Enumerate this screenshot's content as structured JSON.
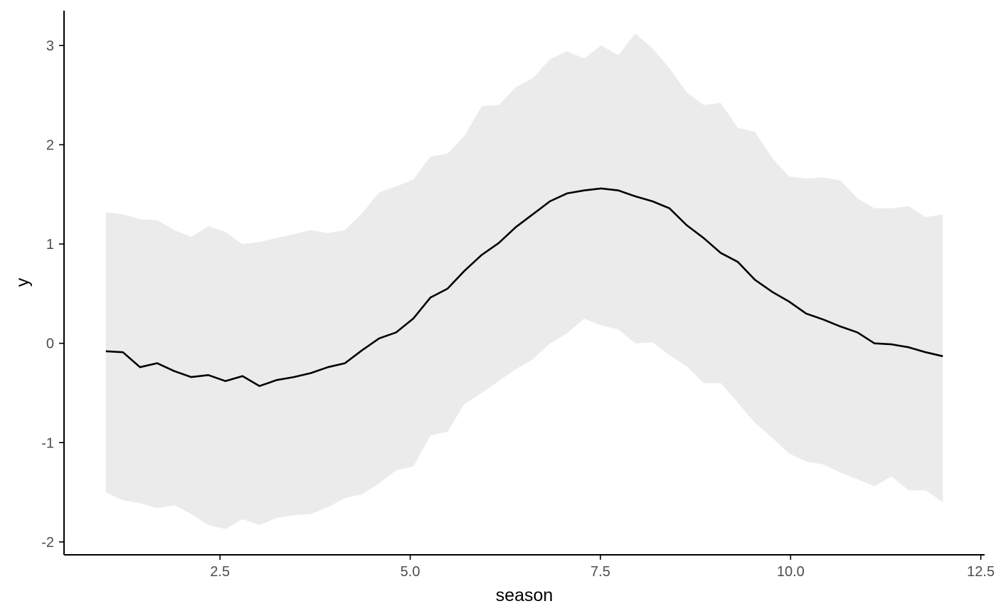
{
  "chart_data": {
    "type": "line",
    "xlabel": "season",
    "ylabel": "y",
    "xlim": [
      0.45,
      12.55
    ],
    "ylim": [
      -2.13,
      3.35
    ],
    "x_ticks": [
      2.5,
      5.0,
      7.5,
      10.0,
      12.5
    ],
    "x_tick_labels": [
      "2.5",
      "5.0",
      "7.5",
      "10.0",
      "12.5"
    ],
    "y_ticks": [
      -2,
      -1,
      0,
      1,
      2,
      3
    ],
    "y_tick_labels": [
      "-2",
      "-1",
      "0",
      "1",
      "2",
      "3"
    ],
    "grid": false,
    "colors": {
      "line": "#000000",
      "ribbon": "#ebebeb",
      "axis": "#000000"
    },
    "x": [
      1.0,
      1.224,
      1.449,
      1.673,
      1.898,
      2.122,
      2.347,
      2.571,
      2.796,
      3.02,
      3.245,
      3.469,
      3.694,
      3.918,
      4.143,
      4.367,
      4.592,
      4.816,
      5.041,
      5.265,
      5.49,
      5.714,
      5.939,
      6.163,
      6.388,
      6.612,
      6.837,
      7.061,
      7.286,
      7.51,
      7.735,
      7.959,
      8.184,
      8.408,
      8.633,
      8.857,
      9.082,
      9.306,
      9.531,
      9.755,
      9.98,
      10.204,
      10.429,
      10.653,
      10.878,
      11.102,
      11.327,
      11.551,
      11.776,
      12.0
    ],
    "series": [
      {
        "values": [
          -0.08,
          -0.09,
          -0.24,
          -0.2,
          -0.28,
          -0.34,
          -0.32,
          -0.38,
          -0.33,
          -0.43,
          -0.37,
          -0.34,
          -0.3,
          -0.24,
          -0.2,
          -0.07,
          0.05,
          0.11,
          0.25,
          0.46,
          0.55,
          0.73,
          0.89,
          1.01,
          1.17,
          1.3,
          1.43,
          1.51,
          1.54,
          1.56,
          1.54,
          1.48,
          1.43,
          1.36,
          1.19,
          1.06,
          0.91,
          0.82,
          0.64,
          0.52,
          0.42,
          0.3,
          0.24,
          0.17,
          0.11,
          0.0,
          -0.01,
          -0.04,
          -0.09,
          -0.13
        ],
        "lower": [
          -1.5,
          -1.58,
          -1.61,
          -1.66,
          -1.63,
          -1.72,
          -1.83,
          -1.87,
          -1.77,
          -1.83,
          -1.76,
          -1.73,
          -1.72,
          -1.65,
          -1.56,
          -1.52,
          -1.41,
          -1.28,
          -1.24,
          -0.93,
          -0.89,
          -0.61,
          -0.5,
          -0.38,
          -0.26,
          -0.16,
          0.0,
          0.1,
          0.25,
          0.18,
          0.14,
          0.0,
          0.01,
          -0.12,
          -0.23,
          -0.4,
          -0.4,
          -0.6,
          -0.8,
          -0.95,
          -1.11,
          -1.19,
          -1.22,
          -1.3,
          -1.37,
          -1.44,
          -1.34,
          -1.48,
          -1.48,
          -1.6
        ],
        "upper": [
          1.32,
          1.3,
          1.25,
          1.24,
          1.14,
          1.07,
          1.18,
          1.12,
          1.0,
          1.02,
          1.06,
          1.1,
          1.14,
          1.11,
          1.14,
          1.31,
          1.52,
          1.58,
          1.65,
          1.88,
          1.91,
          2.09,
          2.39,
          2.4,
          2.58,
          2.67,
          2.86,
          2.94,
          2.87,
          3.0,
          2.9,
          3.12,
          2.97,
          2.77,
          2.53,
          2.4,
          2.42,
          2.17,
          2.13,
          1.87,
          1.68,
          1.66,
          1.67,
          1.64,
          1.46,
          1.36,
          1.36,
          1.38,
          1.27,
          1.3
        ]
      }
    ]
  }
}
